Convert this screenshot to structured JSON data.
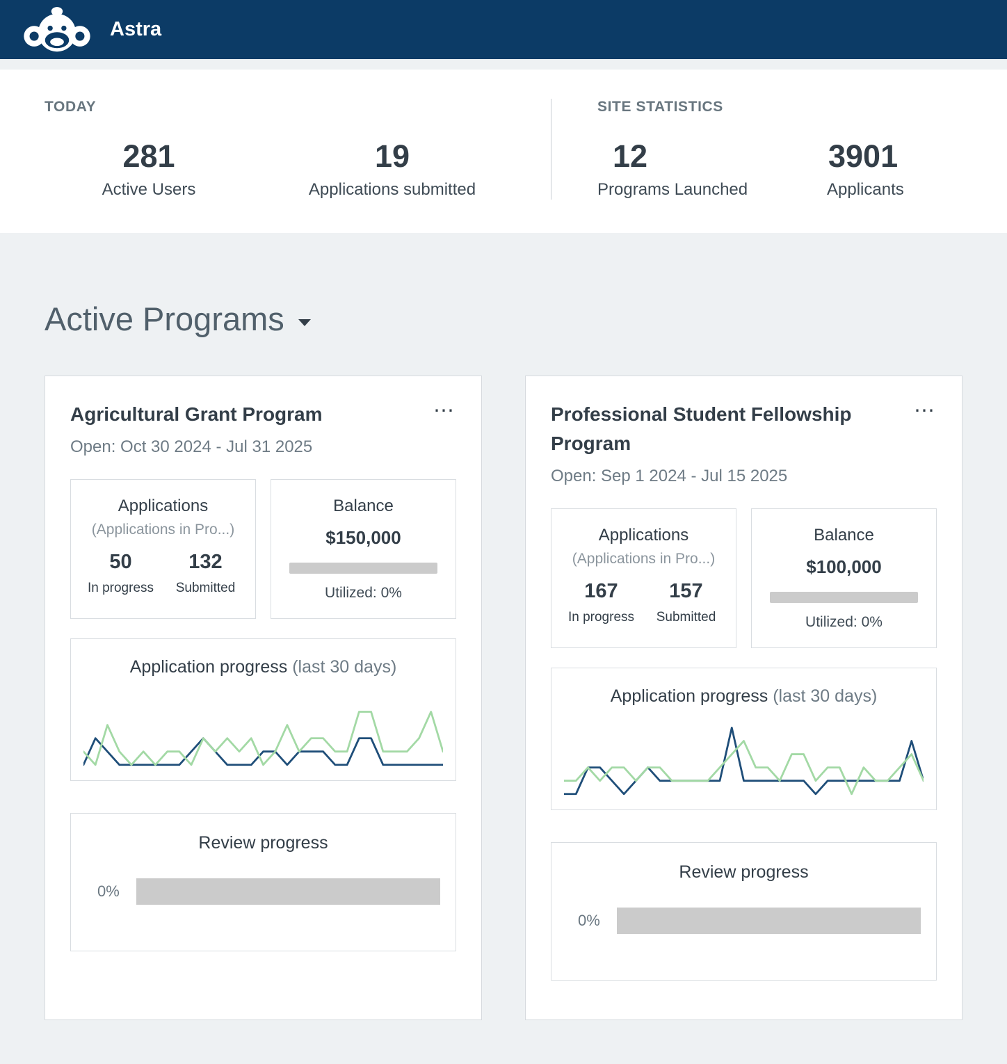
{
  "header": {
    "app_name": "Astra"
  },
  "stats": {
    "today": {
      "label": "TODAY",
      "items": [
        {
          "value": "281",
          "label": "Active Users"
        },
        {
          "value": "19",
          "label": "Applications submitted"
        }
      ]
    },
    "site": {
      "label": "SITE STATISTICS",
      "items": [
        {
          "value": "12",
          "label": "Programs Launched"
        },
        {
          "value": "3901",
          "label": "Applicants"
        }
      ]
    }
  },
  "section": {
    "title": "Active Programs"
  },
  "cards": [
    {
      "title": "Agricultural Grant Program",
      "menu": "⋯",
      "dates": "Open: Oct 30 2024 - Jul 31 2025",
      "applications": {
        "title": "Applications",
        "subtitle": "(Applications in Pro...)",
        "in_progress_value": "50",
        "in_progress_label": "In progress",
        "submitted_value": "132",
        "submitted_label": "Submitted"
      },
      "balance": {
        "title": "Balance",
        "amount": "$150,000",
        "utilized": "Utilized: 0%"
      },
      "chart": {
        "type": "line",
        "title": "Application progress",
        "subtitle": "(last 30 days)",
        "ymax": 5.5,
        "series": [
          {
            "name": "In progress",
            "color": "#1f4e79",
            "values": [
              0,
              2,
              1,
              0,
              0,
              0,
              0,
              0,
              0,
              1,
              2,
              1,
              0,
              0,
              0,
              1,
              1,
              0,
              1,
              1,
              1,
              0,
              0,
              2,
              2,
              0,
              0,
              0,
              0,
              0,
              0
            ]
          },
          {
            "name": "Submitted",
            "color": "#a3d9a5",
            "values": [
              1,
              0,
              3,
              1,
              0,
              1,
              0,
              1,
              1,
              0,
              2,
              1,
              2,
              1,
              2,
              0,
              1,
              3,
              1,
              2,
              2,
              1,
              1,
              4,
              4,
              1,
              1,
              1,
              2,
              4,
              1
            ]
          }
        ]
      },
      "review": {
        "title": "Review progress",
        "percent": "0%"
      }
    },
    {
      "title": "Professional Student Fellowship Program",
      "menu": "⋯",
      "dates": "Open: Sep 1 2024 - Jul 15 2025",
      "applications": {
        "title": "Applications",
        "subtitle": "(Applications in Pro...)",
        "in_progress_value": "167",
        "in_progress_label": "In progress",
        "submitted_value": "157",
        "submitted_label": "Submitted"
      },
      "balance": {
        "title": "Balance",
        "amount": "$100,000",
        "utilized": "Utilized: 0%"
      },
      "chart": {
        "type": "line",
        "title": "Application progress",
        "subtitle": "(last 30 days)",
        "ymax": 5.5,
        "series": [
          {
            "name": "In progress",
            "color": "#1f4e79",
            "values": [
              0,
              0,
              2,
              2,
              1,
              0,
              1,
              2,
              1,
              1,
              1,
              1,
              1,
              1,
              5,
              1,
              1,
              1,
              1,
              1,
              1,
              0,
              1,
              1,
              1,
              1,
              1,
              1,
              1,
              4,
              1
            ]
          },
          {
            "name": "Submitted",
            "color": "#a3d9a5",
            "values": [
              1,
              1,
              2,
              1,
              2,
              2,
              1,
              2,
              2,
              1,
              1,
              1,
              1,
              2,
              3,
              4,
              2,
              2,
              1,
              3,
              3,
              1,
              2,
              2,
              0,
              2,
              1,
              1,
              2,
              3,
              1
            ]
          }
        ]
      },
      "review": {
        "title": "Review progress",
        "percent": "0%"
      }
    }
  ],
  "colors": {
    "header_navy": "#0c3b66",
    "line_blue": "#1f4e79",
    "line_green": "#a3d9a5",
    "bar_gray": "#cbcbcb"
  }
}
